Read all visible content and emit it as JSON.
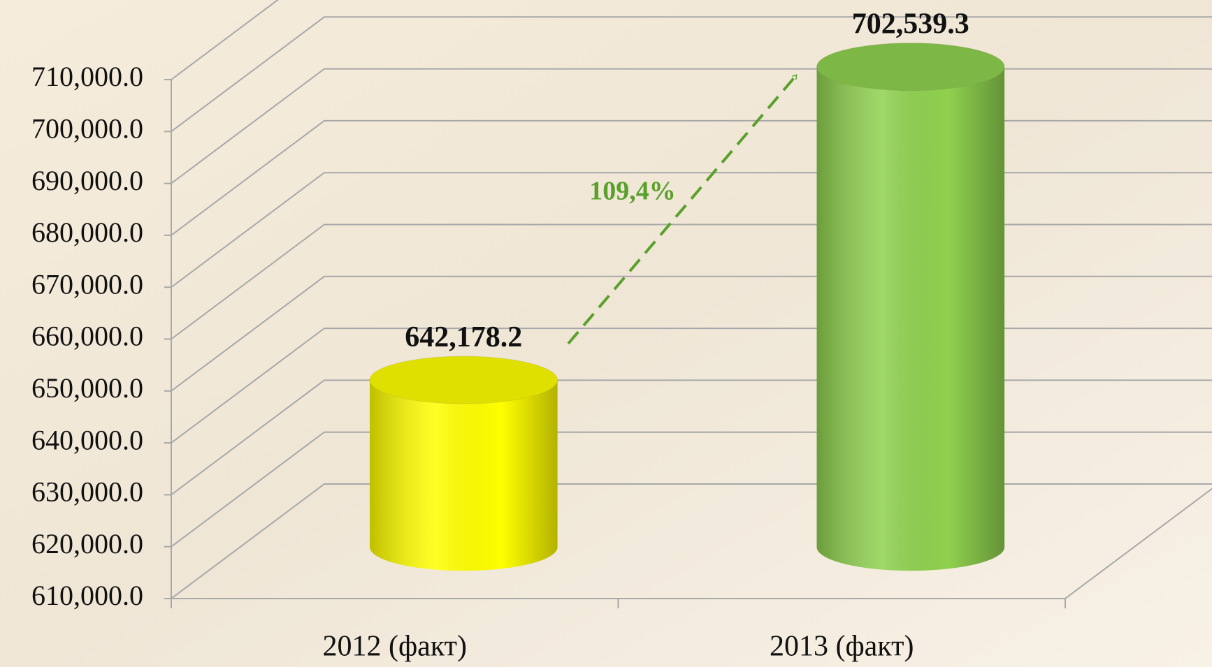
{
  "chart_data": {
    "type": "bar3d",
    "categories": [
      "2012 (факт)",
      "2013 (факт)"
    ],
    "values": [
      642178.2,
      702539.3
    ],
    "value_labels": [
      "642,178.2",
      "702,539.3"
    ],
    "colors": [
      "#ffff00",
      "#8fd14f"
    ],
    "annotation": "109,4%",
    "ylim": [
      610000,
      710000
    ],
    "yticks": [
      {
        "value": 610000,
        "label": "610,000.0"
      },
      {
        "value": 620000,
        "label": "620,000.0"
      },
      {
        "value": 630000,
        "label": "630,000.0"
      },
      {
        "value": 640000,
        "label": "640,000.0"
      },
      {
        "value": 650000,
        "label": "650,000.0"
      },
      {
        "value": 660000,
        "label": "660,000.0"
      },
      {
        "value": 670000,
        "label": "670,000.0"
      },
      {
        "value": 680000,
        "label": "680,000.0"
      },
      {
        "value": 690000,
        "label": "690,000.0"
      },
      {
        "value": 700000,
        "label": "700,000.0"
      },
      {
        "value": 710000,
        "label": "710,000.0"
      }
    ],
    "grid": true
  }
}
